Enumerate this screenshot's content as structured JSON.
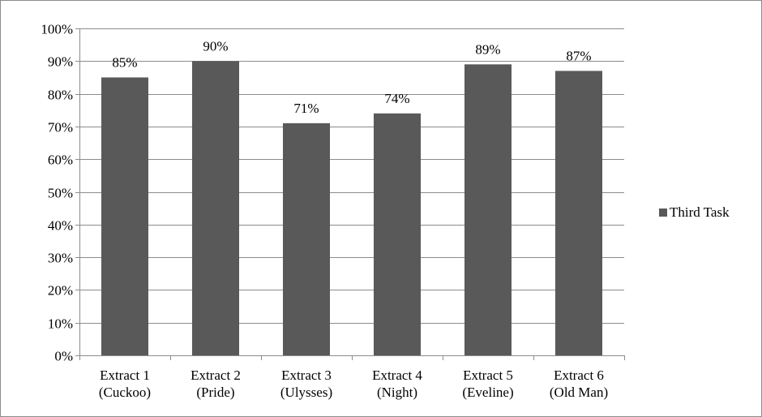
{
  "chart_data": {
    "type": "bar",
    "categories": [
      [
        "Extract 1",
        "(Cuckoo)"
      ],
      [
        "Extract 2",
        "(Pride)"
      ],
      [
        "Extract 3",
        "(Ulysses)"
      ],
      [
        "Extract 4",
        "(Night)"
      ],
      [
        "Extract 5",
        "(Eveline)"
      ],
      [
        "Extract 6",
        "(Old Man)"
      ]
    ],
    "series": [
      {
        "name": "Third Task",
        "values": [
          85,
          90,
          71,
          74,
          89,
          87
        ],
        "data_labels": [
          "85%",
          "90%",
          "71%",
          "74%",
          "89%",
          "87%"
        ],
        "color": "#595959"
      }
    ],
    "yticks": [
      0,
      10,
      20,
      30,
      40,
      50,
      60,
      70,
      80,
      90,
      100
    ],
    "ytick_labels": [
      "0%",
      "10%",
      "20%",
      "30%",
      "40%",
      "50%",
      "60%",
      "70%",
      "80%",
      "90%",
      "100%"
    ],
    "ylim": [
      0,
      100
    ],
    "grid": true,
    "legend": "right",
    "colors": {
      "grid": "#8c8c8c",
      "axis": "#8c8c8c",
      "frame": "#8c8c8c"
    }
  }
}
